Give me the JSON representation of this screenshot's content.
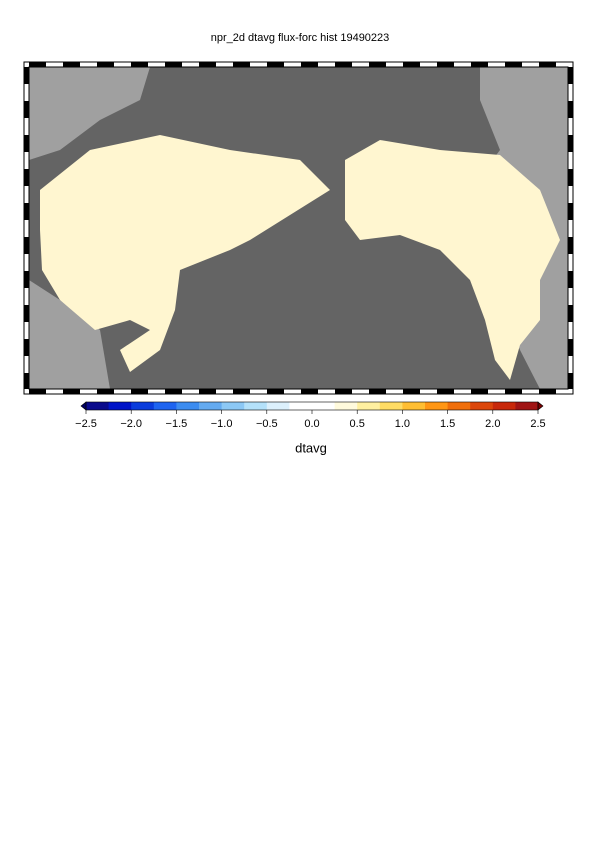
{
  "chart_data": {
    "type": "colorbar-map",
    "title": "npr_2d dtavg flux-forc hist 19490223",
    "colorbar_label": "dtavg",
    "clim": [
      -2.5,
      2.5
    ],
    "ticks": [
      {
        "value": -2.5,
        "label": "−2.5"
      },
      {
        "value": -2.0,
        "label": "−2.0"
      },
      {
        "value": -1.5,
        "label": "−1.5"
      },
      {
        "value": -1.0,
        "label": "−1.0"
      },
      {
        "value": -0.5,
        "label": "−0.5"
      },
      {
        "value": 0,
        "label": "0.0"
      },
      0.5,
      {
        "value": 1,
        "label": "1.0"
      },
      1.5,
      {
        "value": 2,
        "label": "2.0"
      },
      2.5
    ],
    "colors": [
      "#0a0a8c",
      "#0014c8",
      "#0a3cdc",
      "#1e64f0",
      "#3c8cf0",
      "#64aaf0",
      "#8cc8f5",
      "#b4e1fa",
      "#dcf0fc",
      "#ffffff",
      "#ffffff",
      "#fffadc",
      "#fff0a0",
      "#ffdc64",
      "#ffbe32",
      "#ff9614",
      "#f06e0a",
      "#dc460a",
      "#c8280a",
      "#a01414"
    ],
    "under_color": "#000064",
    "over_color": "#780000"
  }
}
